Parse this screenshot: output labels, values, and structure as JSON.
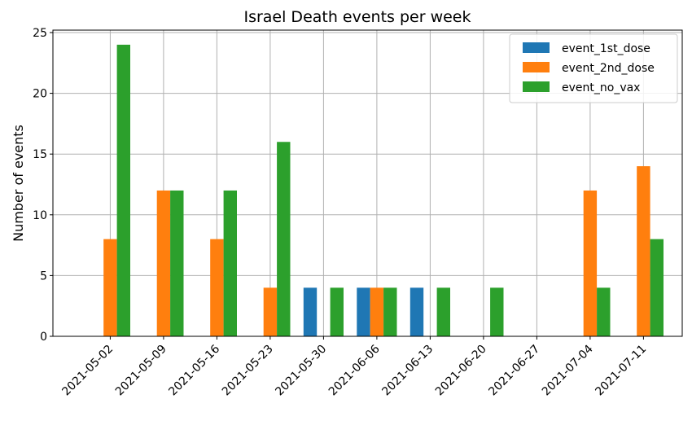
{
  "chart_data": {
    "type": "bar",
    "title": "Israel Death events per week",
    "xlabel": "",
    "ylabel": "Number of events",
    "categories": [
      "2021-05-02",
      "2021-05-09",
      "2021-05-16",
      "2021-05-23",
      "2021-05-30",
      "2021-06-06",
      "2021-06-13",
      "2021-06-20",
      "2021-06-27",
      "2021-07-04",
      "2021-07-11"
    ],
    "series": [
      {
        "name": "event_1st_dose",
        "color": "#1f77b4",
        "values": [
          0,
          0,
          0,
          0,
          4,
          4,
          4,
          0,
          0,
          0,
          0
        ]
      },
      {
        "name": "event_2nd_dose",
        "color": "#ff7f0e",
        "values": [
          8,
          12,
          8,
          4,
          0,
          4,
          0,
          0,
          0,
          12,
          14
        ]
      },
      {
        "name": "event_no_vax",
        "color": "#2ca02c",
        "values": [
          24,
          12,
          12,
          16,
          4,
          4,
          4,
          4,
          0,
          4,
          8
        ]
      }
    ],
    "ylim": [
      0,
      25.2
    ],
    "yticks": [
      0,
      5,
      10,
      15,
      20,
      25
    ],
    "grid": true,
    "legend": "top-right",
    "xtick_rotation": 45
  }
}
